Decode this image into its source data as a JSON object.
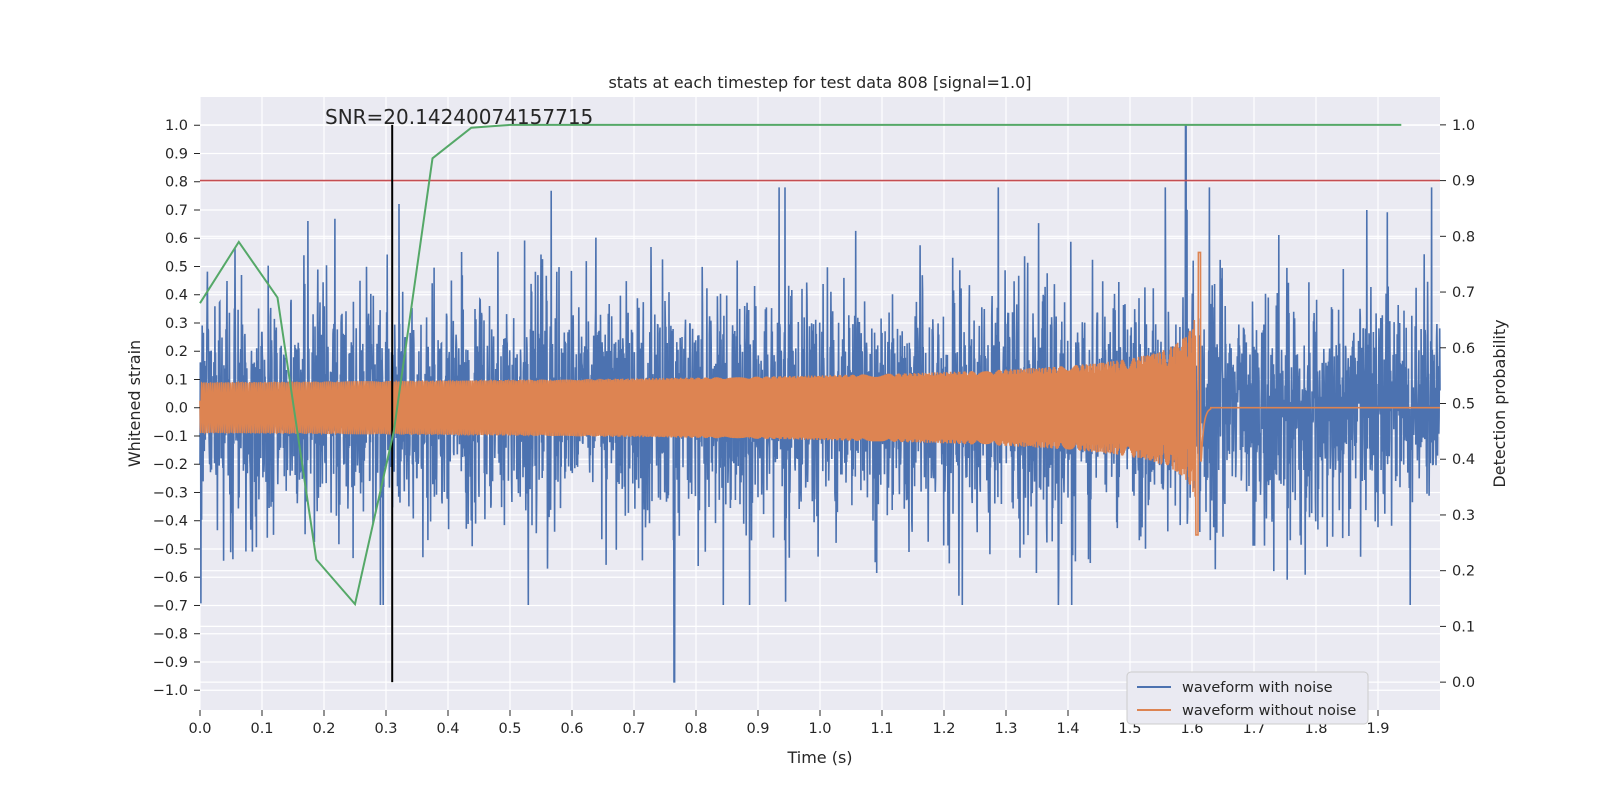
{
  "chart_data": {
    "type": "line",
    "title": "stats at each timestep for test data 808 [signal=1.0]",
    "xlabel": "Time (s)",
    "ylabel": "Whitened strain",
    "y2label": "Detection probability",
    "xlim": [
      0.0,
      2.0
    ],
    "ylim": [
      -1.07,
      1.1
    ],
    "y2lim": [
      -0.05,
      1.05
    ],
    "x_ticks": [
      "0.0",
      "0.1",
      "0.2",
      "0.3",
      "0.4",
      "0.5",
      "0.6",
      "0.7",
      "0.8",
      "0.9",
      "1.0",
      "1.1",
      "1.2",
      "1.3",
      "1.4",
      "1.5",
      "1.6",
      "1.7",
      "1.8",
      "1.9"
    ],
    "y_ticks": [
      "1.0",
      "0.9",
      "0.8",
      "0.7",
      "0.6",
      "0.5",
      "0.4",
      "0.3",
      "0.2",
      "0.1",
      "0.0",
      "−0.1",
      "−0.2",
      "−0.3",
      "−0.4",
      "−0.5",
      "−0.6",
      "−0.7",
      "−0.8",
      "−0.9",
      "−1.0"
    ],
    "y2_ticks": [
      "1.0",
      "0.9",
      "0.8",
      "0.7",
      "0.6",
      "0.5",
      "0.4",
      "0.3",
      "0.2",
      "0.1",
      "0.0"
    ],
    "grid": true,
    "background": "#eaeaf2",
    "legend_position": "lower-right",
    "annotation": "SNR=20.14240074157715",
    "snr_marker_x": 0.31,
    "threshold_y2": 0.9,
    "series": [
      {
        "name": "waveform with noise",
        "color": "#4c72b0",
        "axis": "left",
        "kind": "noise",
        "amplitude_range": [
          -0.97,
          1.0
        ],
        "max_peak": {
          "x": 1.59,
          "y": 1.0
        },
        "min_peak": {
          "x": 0.765,
          "y": -0.97
        }
      },
      {
        "name": "waveform without noise",
        "color": "#dd8452",
        "axis": "left",
        "kind": "chirp",
        "start_amplitude": 0.09,
        "peak_amplitude_pos": 0.55,
        "peak_amplitude_neg": -0.45,
        "merger_time": 1.615,
        "ringdown_end": 1.63
      },
      {
        "name": "",
        "color": "#55a868",
        "axis": "right",
        "kind": "probability",
        "x": [
          0.0,
          0.0625,
          0.125,
          0.1875,
          0.25,
          0.3125,
          0.375,
          0.4375,
          0.5,
          0.5625,
          0.625,
          0.6875,
          0.75,
          1.0,
          1.5,
          1.9375
        ],
        "values": [
          0.68,
          0.79,
          0.69,
          0.22,
          0.14,
          0.45,
          0.94,
          0.995,
          1.0,
          1.0,
          1.0,
          1.0,
          1.0,
          1.0,
          1.0,
          1.0
        ]
      },
      {
        "name": "",
        "color": "#c44e52",
        "axis": "right",
        "kind": "threshold"
      },
      {
        "name": "",
        "color": "#000000",
        "axis": "left",
        "kind": "snr-marker"
      }
    ],
    "colors": {
      "noise": "#4c72b0",
      "clean": "#dd8452",
      "probability": "#55a868",
      "threshold": "#c44e52",
      "marker": "#000000",
      "grid": "#ffffff"
    }
  }
}
